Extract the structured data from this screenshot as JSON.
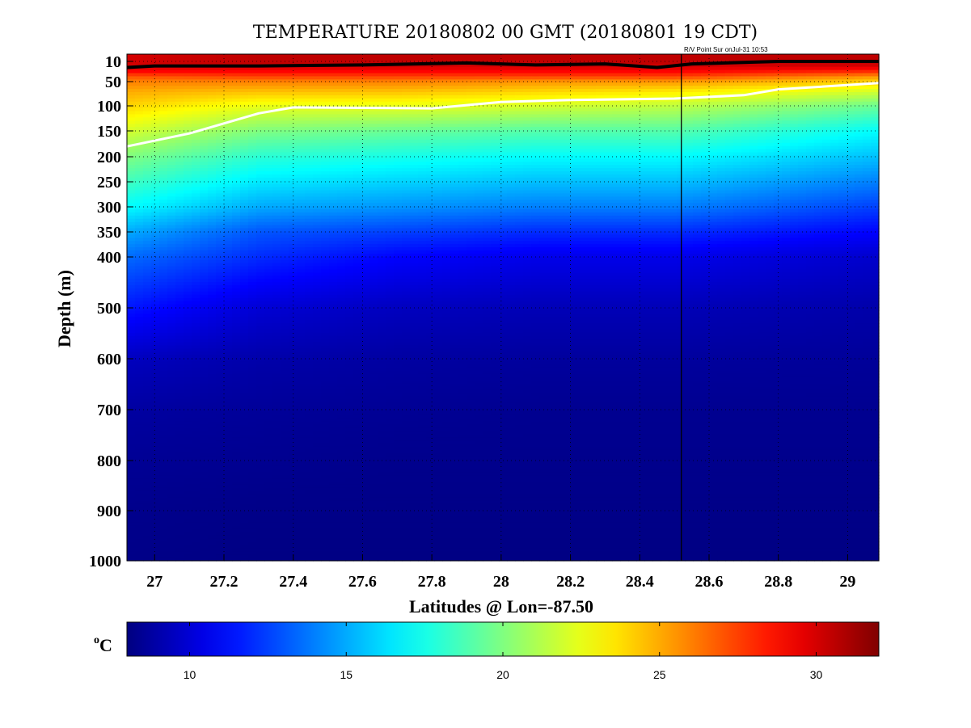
{
  "chart_data": {
    "type": "heatmap",
    "title": "TEMPERATURE 20180802 00 GMT (20180801 19 CDT)",
    "annotation": "R/V Point Sur onJul-31 10:53",
    "xlabel": "Latitudes @ Lon=-87.50",
    "ylabel": "Depth (m)",
    "xlim": [
      26.92,
      29.09
    ],
    "ylim": [
      1000,
      0
    ],
    "y_scale": "piecewise (expanded upper 400 m)",
    "xticks": [
      27,
      27.2,
      27.4,
      27.6,
      27.8,
      28,
      28.2,
      28.4,
      28.6,
      28.8,
      29
    ],
    "xtick_labels": [
      "27",
      "27.2",
      "27.4",
      "27.6",
      "27.8",
      "28",
      "28.2",
      "28.4",
      "28.6",
      "28.8",
      "29"
    ],
    "yticks": [
      10,
      50,
      100,
      150,
      200,
      250,
      300,
      350,
      400,
      500,
      600,
      700,
      800,
      900,
      1000
    ],
    "ytick_labels": [
      "10",
      "50",
      "100",
      "150",
      "200",
      "250",
      "300",
      "350",
      "400",
      "500",
      "600",
      "700",
      "800",
      "900",
      "1000"
    ],
    "grid": "dotted",
    "colorbar": {
      "label": "°C",
      "label_base": "C",
      "label_sup": "o",
      "range": [
        8,
        32
      ],
      "ticks": [
        10,
        15,
        20,
        25,
        30
      ],
      "tick_labels": [
        "10",
        "15",
        "20",
        "25",
        "30"
      ],
      "colormap": "jet"
    },
    "temperature_profiles": {
      "depths": [
        0,
        10,
        20,
        30,
        40,
        50,
        70,
        100,
        150,
        200,
        250,
        300,
        350,
        400,
        500,
        600,
        700,
        800,
        900,
        1000
      ],
      "columns": [
        {
          "lat": 26.92,
          "temps": [
            30,
            30,
            30,
            29,
            27,
            26,
            25,
            24,
            22,
            20,
            18.5,
            17,
            15,
            13.5,
            11.5,
            9.5,
            8.8,
            8.5,
            8.3,
            8.2
          ]
        },
        {
          "lat": 27.3,
          "temps": [
            30.5,
            30.5,
            30,
            29,
            27.5,
            26,
            24.5,
            22.5,
            20,
            18,
            16.5,
            15,
            13,
            12,
            10,
            9,
            8.6,
            8.4,
            8.2,
            8.1
          ]
        },
        {
          "lat": 27.7,
          "temps": [
            30.5,
            30.5,
            30,
            29,
            27.5,
            26,
            24.5,
            22.5,
            19.5,
            17.5,
            16,
            14.5,
            12.5,
            11,
            9.5,
            8.8,
            8.5,
            8.3,
            8.2,
            8.1
          ]
        },
        {
          "lat": 28.1,
          "temps": [
            30.5,
            30.5,
            30,
            29,
            27.5,
            25.5,
            24,
            22,
            19,
            17,
            15.5,
            14,
            12,
            10.5,
            9.3,
            8.7,
            8.4,
            8.3,
            8.2,
            8.1
          ]
        },
        {
          "lat": 28.5,
          "temps": [
            30.5,
            30.5,
            30,
            29,
            27.5,
            25.5,
            23.5,
            21.5,
            19,
            17,
            15.5,
            14,
            12,
            10.5,
            9.3,
            8.7,
            8.4,
            8.3,
            8.2,
            8.1
          ]
        },
        {
          "lat": 29.09,
          "temps": [
            30.5,
            30.5,
            30,
            28,
            25.5,
            24,
            22,
            19.5,
            17,
            15.5,
            14,
            12.5,
            11,
            9.8,
            9,
            8.6,
            8.4,
            8.3,
            8.2,
            8.1
          ]
        }
      ]
    },
    "contours": [
      {
        "color": "#000000",
        "points": [
          [
            26.92,
            22
          ],
          [
            27.0,
            19
          ],
          [
            27.3,
            19
          ],
          [
            27.6,
            17
          ],
          [
            27.9,
            13
          ],
          [
            28.1,
            17
          ],
          [
            28.3,
            15
          ],
          [
            28.45,
            22
          ],
          [
            28.55,
            15
          ],
          [
            28.8,
            10
          ],
          [
            29.09,
            10
          ]
        ]
      },
      {
        "color": "#ffffff",
        "points": [
          [
            26.92,
            180
          ],
          [
            27.1,
            155
          ],
          [
            27.3,
            115
          ],
          [
            27.4,
            103
          ],
          [
            27.8,
            105
          ],
          [
            28.0,
            92
          ],
          [
            28.2,
            88
          ],
          [
            28.5,
            85
          ],
          [
            28.7,
            78
          ],
          [
            28.8,
            66
          ],
          [
            29.09,
            53
          ]
        ]
      }
    ],
    "marker_line": {
      "lat": 28.52,
      "color": "#000000"
    }
  }
}
